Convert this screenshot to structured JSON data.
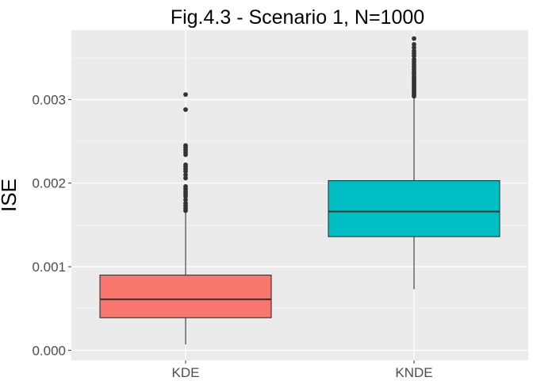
{
  "chart_data": {
    "type": "boxplot",
    "title": "Fig.4.3 - Scenario 1, N=1000",
    "xlabel": "",
    "ylabel": "ISE",
    "categories": [
      "KDE",
      "KNDE"
    ],
    "y_ticks": [
      0.0,
      0.001,
      0.002,
      0.003
    ],
    "y_tick_labels": [
      "0.000",
      "0.001",
      "0.002",
      "0.003"
    ],
    "ylim": [
      -0.00012,
      0.00383
    ],
    "grid": true,
    "legend": "none",
    "boxes": [
      {
        "category": "KDE",
        "color": "#F8766D",
        "whisker_low": 7e-05,
        "q1": 0.00039,
        "median": 0.00061,
        "q3": 0.0009,
        "whisker_high": 0.00165,
        "outliers": [
          0.00306,
          0.00288,
          0.00245,
          0.00243,
          0.0024,
          0.00237,
          0.00234,
          0.00222,
          0.0022,
          0.00217,
          0.00214,
          0.0021,
          0.00206,
          0.00196,
          0.00193,
          0.0019,
          0.00187,
          0.00184,
          0.0018,
          0.00176,
          0.00173,
          0.0017,
          0.00167
        ]
      },
      {
        "category": "KNDE",
        "color": "#00BFC4",
        "whisker_low": 0.00073,
        "q1": 0.00136,
        "median": 0.00166,
        "q3": 0.00203,
        "whisker_high": 0.00302,
        "outliers": [
          0.00373,
          0.00366,
          0.00362,
          0.00358,
          0.00355,
          0.00352,
          0.00348,
          0.00345,
          0.00342,
          0.00339,
          0.00336,
          0.00333,
          0.00331,
          0.00328,
          0.00326,
          0.00324,
          0.00322,
          0.0032,
          0.00318,
          0.00316,
          0.00314,
          0.00312,
          0.0031,
          0.00308,
          0.00306,
          0.00304
        ]
      }
    ]
  }
}
